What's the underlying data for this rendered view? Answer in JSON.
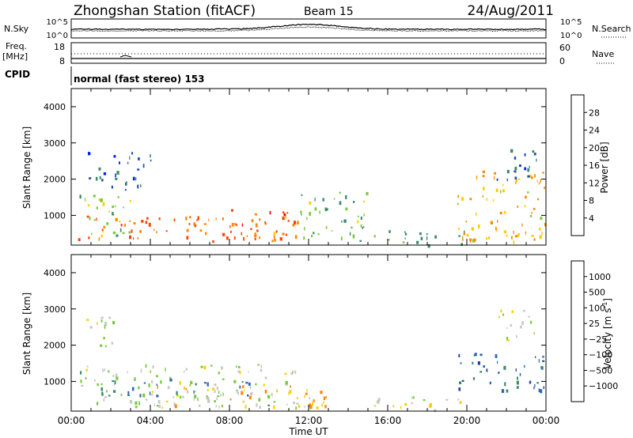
{
  "header": {
    "station_title": "Zhongshan Station (fitACF)",
    "beam_label": "Beam 15",
    "date_label": "24/Aug/2011"
  },
  "noise_panel": {
    "left_label": "N.Sky",
    "left_ticks": [
      "10^5",
      "10^0"
    ],
    "right_ticks": [
      "10^5",
      "10^0"
    ],
    "right_label": "N.Search"
  },
  "freq_panel": {
    "left_label_line1": "Freq.",
    "left_label_line2": "[MHz]",
    "left_ticks": [
      "18",
      "8"
    ],
    "right_ticks": [
      "60",
      "0"
    ],
    "right_label": "Nave"
  },
  "cpid": {
    "label": "CPID",
    "mode_text": "normal (fast stereo) 153"
  },
  "power_panel": {
    "ylabel": "Slant Range [km]",
    "yticks": [
      "4000",
      "3000",
      "2000",
      "1000"
    ],
    "colorbar_label": "Power [dB]",
    "colorbar_ticks": [
      "28",
      "24",
      "20",
      "16",
      "12",
      "8",
      "4"
    ],
    "colors": [
      "#0022ff",
      "#1f4fb4",
      "#3a8a66",
      "#7acb3c",
      "#ffcc00",
      "#ff8800",
      "#ff4400",
      "#ff0000"
    ]
  },
  "velocity_panel": {
    "ylabel": "Slant Range [km]",
    "yticks": [
      "4000",
      "3000",
      "2000",
      "1000"
    ],
    "colorbar_label": "Velocity [m s",
    "colorbar_label_sup": "-1",
    "colorbar_label_end": "]",
    "colorbar_ticks": [
      "1000",
      "500",
      "100",
      "25",
      "-25",
      "-100",
      "-500",
      "-1000"
    ],
    "colors": [
      "#1f3fb4",
      "#2f67b8",
      "#3a8a66",
      "#7acb3c",
      "#c8c8c8",
      "#ffcc00",
      "#ff8800",
      "#ff4400",
      "#ff0000"
    ]
  },
  "xaxis": {
    "label": "Time UT",
    "ticks": [
      "00:00",
      "04:00",
      "08:00",
      "12:00",
      "16:00",
      "20:00",
      "00:00"
    ]
  },
  "chart_data": [
    {
      "type": "heatmap",
      "title": "Zhongshan Station (fitACF) Beam 15 24/Aug/2011",
      "quantity": "Power",
      "unit": "dB",
      "xlabel": "Time UT",
      "ylabel": "Slant Range [km]",
      "ylim": [
        180,
        4500
      ],
      "clim": [
        0,
        30
      ],
      "regions": [
        {
          "t": [
            0.3,
            11.5
          ],
          "r": [
            300,
            1000
          ],
          "value": 22
        },
        {
          "t": [
            0.3,
            3.0
          ],
          "r": [
            400,
            1700
          ],
          "value": 14
        },
        {
          "t": [
            0.8,
            4.0
          ],
          "r": [
            1700,
            2800
          ],
          "value": 6
        },
        {
          "t": [
            8.0,
            11.0
          ],
          "r": [
            300,
            1200
          ],
          "value": 24
        },
        {
          "t": [
            11.5,
            15.0
          ],
          "r": [
            300,
            1700
          ],
          "value": 12
        },
        {
          "t": [
            15.0,
            20.0
          ],
          "r": [
            200,
            600
          ],
          "value": 10
        },
        {
          "t": [
            19.5,
            24.0
          ],
          "r": [
            300,
            2300
          ],
          "value": 18
        },
        {
          "t": [
            21.5,
            23.5
          ],
          "r": [
            2000,
            3000
          ],
          "value": 6
        }
      ]
    },
    {
      "type": "heatmap",
      "quantity": "Velocity",
      "unit": "m s-1",
      "xlabel": "Time UT",
      "ylabel": "Slant Range [km]",
      "ylim": [
        180,
        4500
      ],
      "clim": [
        -1000,
        1000
      ],
      "regions": [
        {
          "t": [
            0.3,
            11.5
          ],
          "r": [
            300,
            1500
          ],
          "value": 100
        },
        {
          "t": [
            1.5,
            9.0
          ],
          "r": [
            600,
            1100
          ],
          "value": 500
        },
        {
          "t": [
            4.0,
            13.0
          ],
          "r": [
            300,
            900
          ],
          "value": -300
        },
        {
          "t": [
            0.5,
            2.5
          ],
          "r": [
            2000,
            2800
          ],
          "value": 0
        },
        {
          "t": [
            15.0,
            20.0
          ],
          "r": [
            200,
            600
          ],
          "value": -50
        },
        {
          "t": [
            19.5,
            24.0
          ],
          "r": [
            700,
            1800
          ],
          "value": 600
        },
        {
          "t": [
            21.5,
            23.5
          ],
          "r": [
            2100,
            3000
          ],
          "value": 0
        }
      ]
    }
  ]
}
